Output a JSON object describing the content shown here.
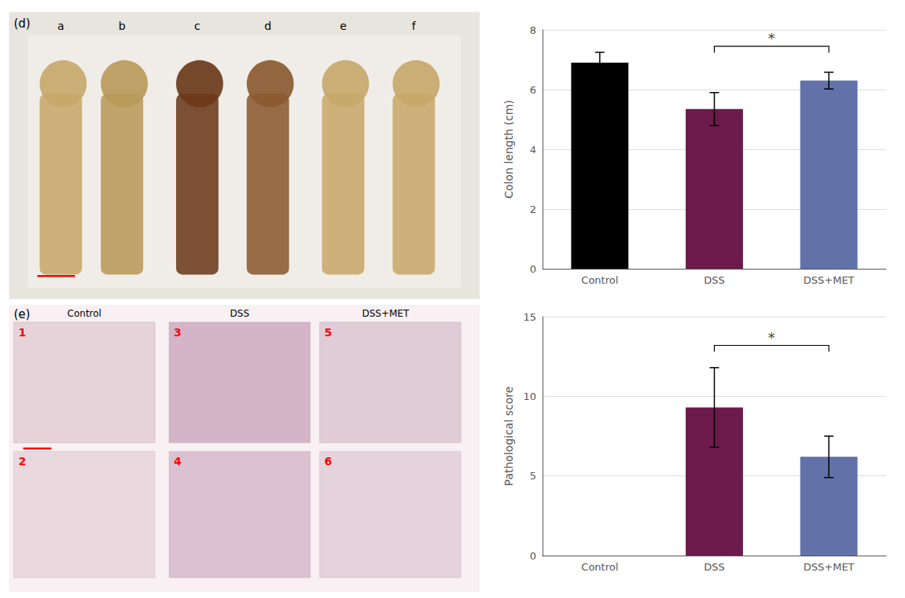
{
  "chart_data": [
    {
      "type": "image",
      "title": "(d)",
      "categories": [
        "a",
        "b",
        "c",
        "d",
        "e",
        "f"
      ]
    },
    {
      "type": "image",
      "title": "(e)",
      "categories": [
        "Control",
        "DSS",
        "DSS+MET"
      ],
      "annotations": [
        "1",
        "2",
        "3",
        "4",
        "5",
        "6"
      ]
    },
    {
      "type": "bar",
      "categories": [
        "Control",
        "DSS",
        "DSS+MET"
      ],
      "values": [
        6.9,
        5.35,
        6.3
      ],
      "errors": [
        0.35,
        0.55,
        0.28
      ],
      "colors": [
        "#000000",
        "#6B1A4A",
        "#6272A8"
      ],
      "ylabel": "Colon length (cm)",
      "ylim": [
        0,
        8
      ],
      "yticks": [
        0,
        2,
        4,
        6,
        8
      ],
      "grid": true,
      "annotations": [
        {
          "text": "*",
          "y": 7.45,
          "from": "DSS",
          "to": "DSS+MET"
        }
      ]
    },
    {
      "type": "bar",
      "categories": [
        "Control",
        "DSS",
        "DSS+MET"
      ],
      "values": [
        0,
        9.3,
        6.2
      ],
      "errors": [
        0,
        2.5,
        1.3
      ],
      "colors": [
        "#000000",
        "#6B1A4A",
        "#6272A8"
      ],
      "ylabel": "Pathological score",
      "ylim": [
        0,
        15
      ],
      "yticks": [
        0,
        5,
        10,
        15
      ],
      "grid": true,
      "annotations": [
        {
          "text": "*",
          "y": 13.2,
          "from": "DSS",
          "to": "DSS+MET"
        }
      ]
    }
  ]
}
